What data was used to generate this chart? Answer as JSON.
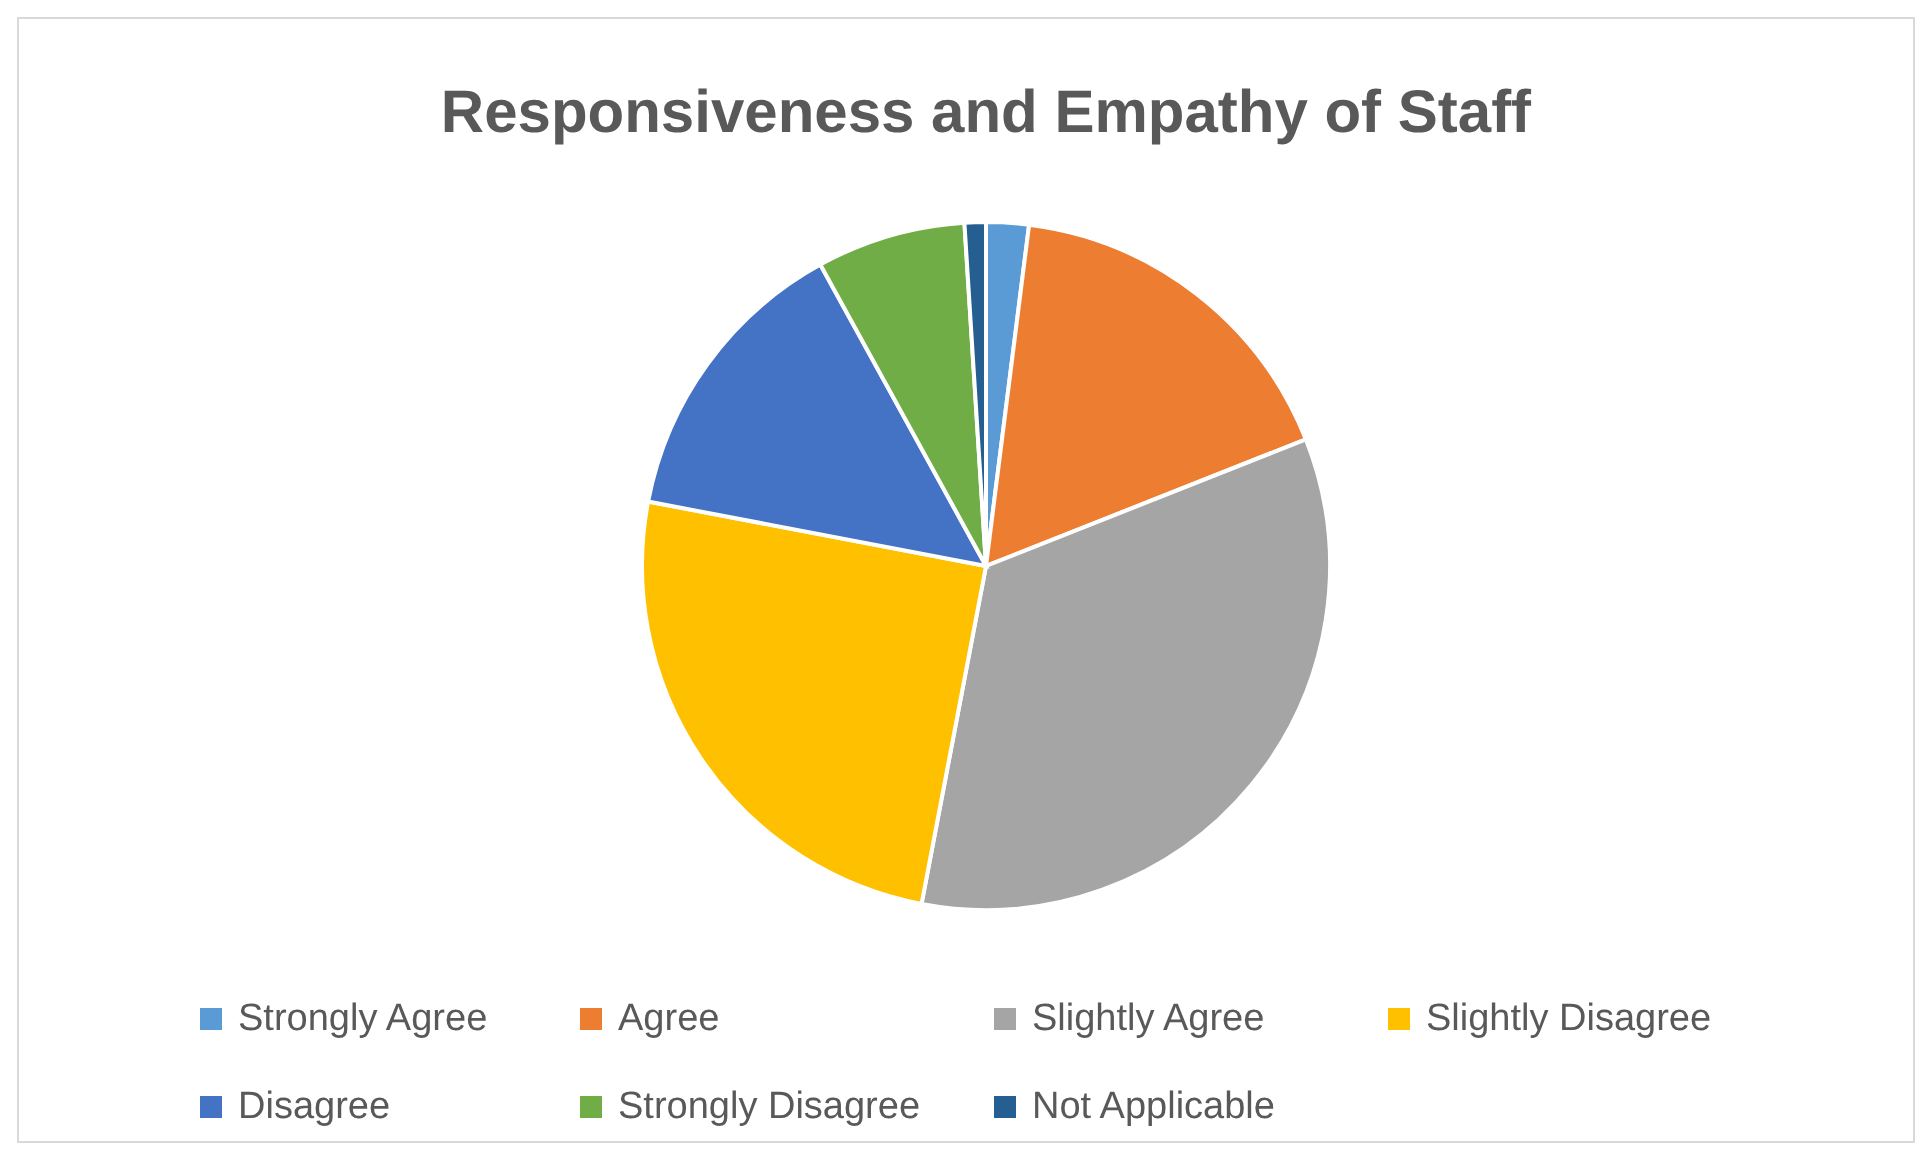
{
  "chart_data": {
    "type": "pie",
    "title": "Responsiveness and Empathy of Staff",
    "categories": [
      "Strongly Agree",
      "Agree",
      "Slightly Agree",
      "Slightly Disagree",
      "Disagree",
      "Strongly Disagree",
      "Not Applicable"
    ],
    "values": [
      2,
      17,
      34,
      25,
      14,
      7,
      1
    ],
    "colors": [
      "#5b9bd5",
      "#ed7d31",
      "#a5a5a5",
      "#ffc000",
      "#4472c4",
      "#70ad47",
      "#255e91"
    ],
    "legend": "bottom"
  }
}
